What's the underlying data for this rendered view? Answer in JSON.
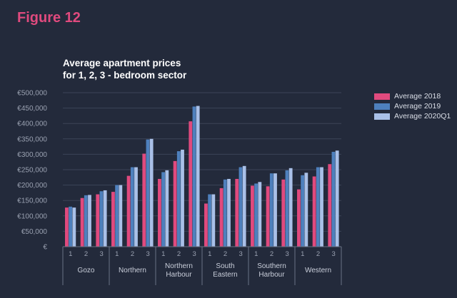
{
  "figure_label": "Figure 12",
  "chart_title_line1": "Average apartment prices",
  "chart_title_line2": "for 1, 2, 3 - bedroom sector",
  "chart_data": {
    "type": "bar",
    "title": "Average apartment prices for 1, 2, 3 - bedroom sector",
    "ylim": [
      0,
      500000
    ],
    "ytick_labels": [
      "€",
      "€50,000",
      "€100,000",
      "€150,000",
      "€200,000",
      "€250,000",
      "€300,000",
      "€350,000",
      "€400,000",
      "€450,000",
      "€500,000"
    ],
    "grid": true,
    "legend_position": "top-right",
    "bedroom_labels": [
      "1",
      "2",
      "3"
    ],
    "regions": [
      "Gozo",
      "Northern",
      "Northern Harbour",
      "South Eastern",
      "Southern Harbour",
      "Western"
    ],
    "categories": [
      "Gozo 1",
      "Gozo 2",
      "Gozo 3",
      "Northern 1",
      "Northern 2",
      "Northern 3",
      "Northern Harbour 1",
      "Northern Harbour 2",
      "Northern Harbour 3",
      "South Eastern 1",
      "South Eastern 2",
      "South Eastern 3",
      "Southern Harbour 1",
      "Southern Harbour 2",
      "Southern Harbour 3",
      "Western 1",
      "Western 2",
      "Western 3"
    ],
    "series": [
      {
        "name": "Average 2018",
        "color": "#e04a7e",
        "values": [
          127000,
          158000,
          170000,
          178000,
          230000,
          302000,
          220000,
          278000,
          407000,
          140000,
          190000,
          220000,
          198000,
          196000,
          218000,
          186000,
          228000,
          268000
        ]
      },
      {
        "name": "Average 2019",
        "color": "#4e80bd",
        "values": [
          130000,
          167000,
          180000,
          200000,
          258000,
          348000,
          242000,
          310000,
          455000,
          170000,
          218000,
          258000,
          205000,
          238000,
          248000,
          232000,
          258000,
          308000
        ]
      },
      {
        "name": "Average 2020Q1",
        "color": "#a9c0e8",
        "values": [
          127000,
          168000,
          183000,
          200000,
          258000,
          350000,
          248000,
          315000,
          457000,
          170000,
          220000,
          262000,
          210000,
          238000,
          255000,
          240000,
          258000,
          312000
        ]
      }
    ]
  }
}
